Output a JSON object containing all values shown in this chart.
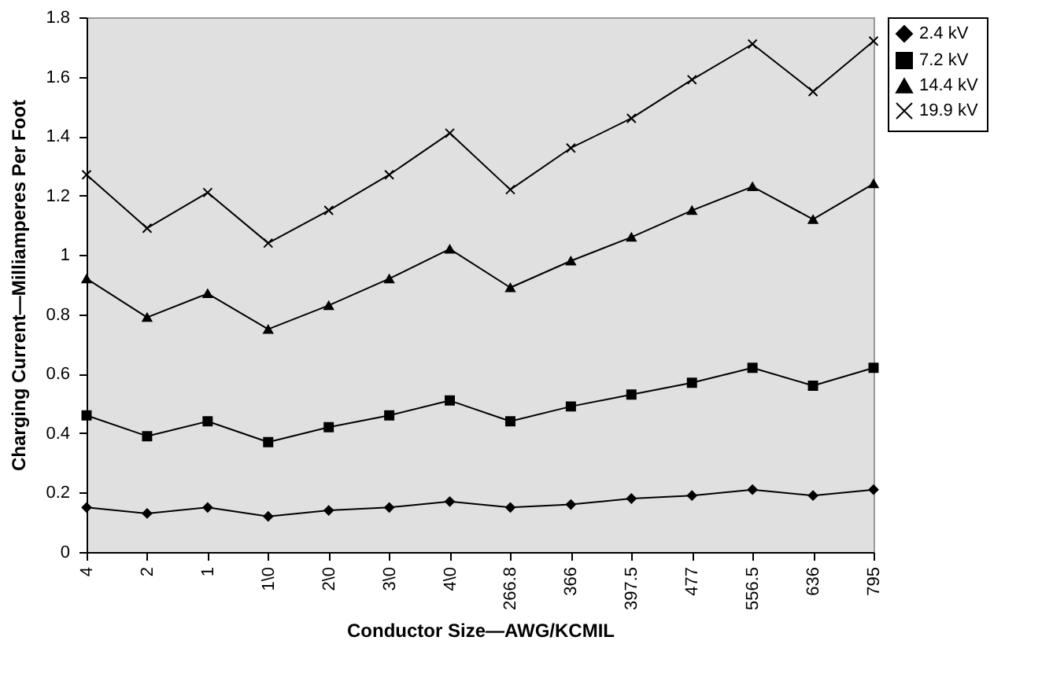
{
  "chart_data": {
    "type": "line",
    "xlabel": "Conductor Size—AWG/KCMIL",
    "ylabel": "Charging Current—Milliamperes Per Foot",
    "categories": [
      "4",
      "2",
      "1",
      "1\\0",
      "2\\0",
      "3\\0",
      "4\\0",
      "266.8",
      "366",
      "397.5",
      "477",
      "556.5",
      "636",
      "795"
    ],
    "series": [
      {
        "name": "2.4 kV",
        "color": "#000000",
        "marker": "diamond",
        "values": [
          0.15,
          0.13,
          0.15,
          0.12,
          0.14,
          0.15,
          0.17,
          0.15,
          0.16,
          0.18,
          0.19,
          0.21,
          0.19,
          0.21
        ]
      },
      {
        "name": "7.2 kV",
        "color": "#000000",
        "marker": "square",
        "values": [
          0.46,
          0.39,
          0.44,
          0.37,
          0.42,
          0.46,
          0.51,
          0.44,
          0.49,
          0.53,
          0.57,
          0.62,
          0.56,
          0.62
        ]
      },
      {
        "name": "14.4 kV",
        "color": "#000000",
        "marker": "triangle",
        "values": [
          0.92,
          0.79,
          0.87,
          0.75,
          0.83,
          0.92,
          1.02,
          0.89,
          0.98,
          1.06,
          1.15,
          1.23,
          1.12,
          1.24
        ]
      },
      {
        "name": "19.9 kV",
        "color": "#000000",
        "marker": "cross",
        "values": [
          1.27,
          1.09,
          1.21,
          1.04,
          1.15,
          1.27,
          1.41,
          1.22,
          1.36,
          1.46,
          1.59,
          1.71,
          1.55,
          1.72
        ]
      }
    ],
    "ylim": [
      0,
      1.8
    ],
    "yticks": [
      0,
      0.2,
      0.4,
      0.6,
      0.8,
      1,
      1.2,
      1.4,
      1.6,
      1.8
    ],
    "grid": false,
    "legend": "right",
    "line_style": "solid"
  }
}
